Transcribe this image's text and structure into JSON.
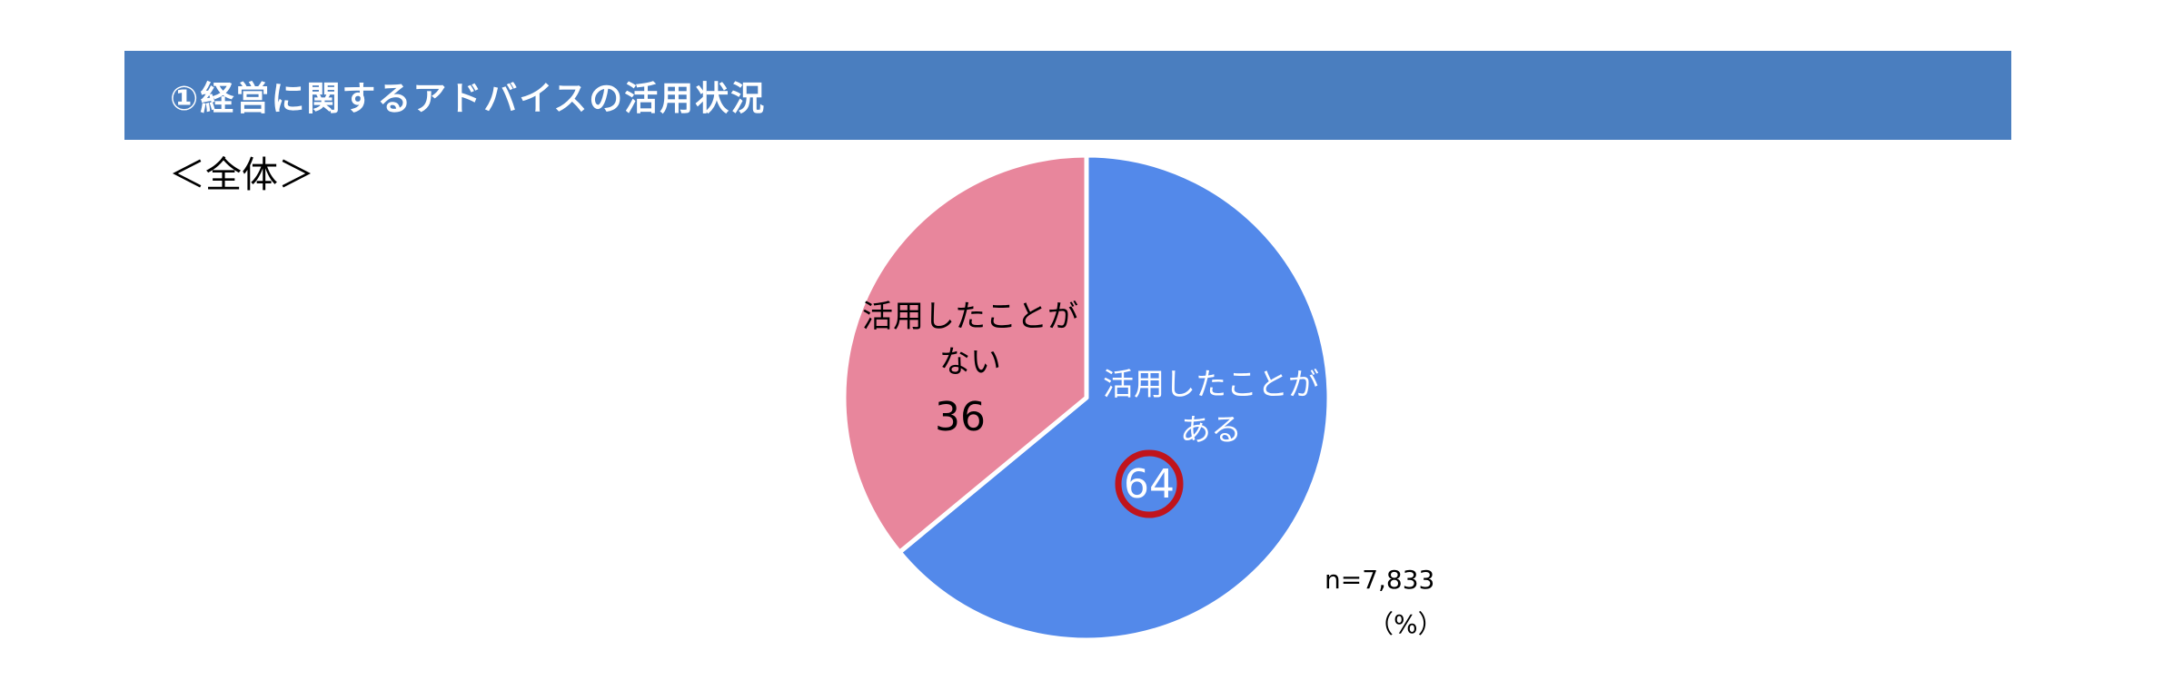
{
  "header": {
    "title": "①経営に関するアドバイスの活用状況",
    "bg_color": "#4a7ebf"
  },
  "subtitle": "＜全体＞",
  "sample_size": "n=7,833",
  "unit": "（%）",
  "chart_data": {
    "type": "pie",
    "title": "",
    "slices": [
      {
        "label_lines": [
          "活用したことが",
          "ある"
        ],
        "value": 64,
        "value_label": "64",
        "color": "#5389ea",
        "text_color": "#ffffff",
        "highlighted": true,
        "highlight_color": "#c0141c"
      },
      {
        "label_lines": [
          "活用したことが",
          "ない"
        ],
        "value": 36,
        "value_label": "36",
        "color": "#e8869c",
        "text_color": "#000000",
        "highlighted": false
      }
    ],
    "start_angle_deg": 0,
    "direction": "clockwise"
  }
}
